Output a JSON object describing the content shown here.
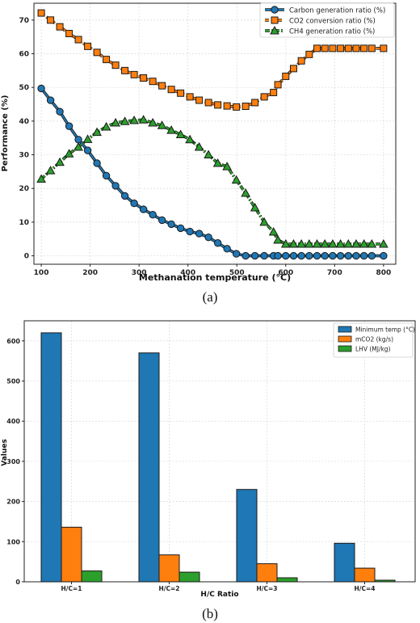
{
  "colors": {
    "carbon": "#1f77b4",
    "co2": "#ff7f0e",
    "ch4": "#2ca02c",
    "minimum_temp": "#1f77b4",
    "mco2": "#ff7f0e",
    "lhv": "#2ca02c"
  },
  "chart_data": [
    {
      "type": "line",
      "panel_label": "(a)",
      "xlabel": "Methanation temperature (°C)",
      "ylabel": "Performance (%)",
      "xlim": [
        85,
        825
      ],
      "ylim": [
        -2.5,
        75
      ],
      "xticks": [
        100,
        200,
        300,
        400,
        500,
        600,
        700,
        800
      ],
      "yticks": [
        0,
        10,
        20,
        30,
        40,
        50,
        60,
        70
      ],
      "grid": true,
      "legend_position": "top-right",
      "x": [
        100,
        119,
        138,
        157,
        176,
        195,
        214,
        233,
        252,
        271,
        290,
        309,
        328,
        347,
        366,
        385,
        404,
        423,
        442,
        461,
        480,
        499,
        518,
        537,
        556,
        575,
        584,
        600,
        616,
        632,
        648,
        664,
        680,
        696,
        712,
        728,
        744,
        760,
        776,
        800
      ],
      "series": [
        {
          "name": "Carbon generation ratio (%)",
          "marker": "circle",
          "values": [
            49.7,
            46.2,
            42.8,
            38.5,
            34.5,
            31.3,
            27.5,
            23.8,
            20.8,
            17.8,
            15.6,
            13.8,
            12.2,
            10.6,
            9.4,
            8.2,
            7.2,
            6.6,
            5.5,
            3.8,
            2.1,
            0.6,
            0,
            0,
            0,
            0,
            0,
            0,
            0,
            0,
            0,
            0,
            0,
            0,
            0,
            0,
            0,
            0,
            0,
            0
          ]
        },
        {
          "name": "CO2 conversion ratio (%)",
          "marker": "square",
          "values": [
            72.1,
            70.0,
            68.0,
            66.0,
            64.2,
            62.2,
            60.4,
            58.3,
            56.6,
            55.0,
            53.8,
            52.8,
            51.8,
            50.5,
            49.4,
            48.3,
            47.2,
            46.2,
            45.5,
            44.8,
            44.5,
            44.2,
            44.4,
            45.5,
            47.2,
            48.5,
            50.8,
            53.3,
            55.6,
            57.9,
            59.8,
            61.6,
            61.6,
            61.6,
            61.6,
            61.6,
            61.6,
            61.6,
            61.6,
            61.6
          ]
        },
        {
          "name": "CH4 generation ratio (%)",
          "marker": "triangle",
          "values": [
            22.8,
            25.3,
            27.8,
            30.3,
            32.3,
            34.6,
            36.7,
            38.3,
            39.5,
            39.9,
            40.2,
            40.4,
            39.5,
            38.7,
            37.3,
            36.0,
            34.5,
            32.3,
            30.0,
            27.5,
            26.5,
            22.5,
            18.6,
            14.3,
            10.0,
            7.1,
            4.7,
            3.5,
            3.5,
            3.5,
            3.5,
            3.5,
            3.5,
            3.5,
            3.5,
            3.5,
            3.5,
            3.5,
            3.5,
            3.5
          ]
        }
      ]
    },
    {
      "type": "bar",
      "panel_label": "(b)",
      "xlabel": "H/C Ratio",
      "ylabel": "Values",
      "categories": [
        "H/C=1",
        "H/C=2",
        "H/C=3",
        "H/C=4"
      ],
      "ylim": [
        0,
        650
      ],
      "yticks": [
        0,
        100,
        200,
        300,
        400,
        500,
        600
      ],
      "grid": true,
      "legend_position": "top-right",
      "series": [
        {
          "name": "Minimum temp (°C)",
          "values": [
            620,
            570,
            230,
            96
          ]
        },
        {
          "name": "mCO2 (kg/s)",
          "values": [
            136,
            67,
            45,
            34
          ]
        },
        {
          "name": "LHV (MJ/kg)",
          "values": [
            27,
            24,
            10,
            4
          ]
        }
      ]
    }
  ]
}
